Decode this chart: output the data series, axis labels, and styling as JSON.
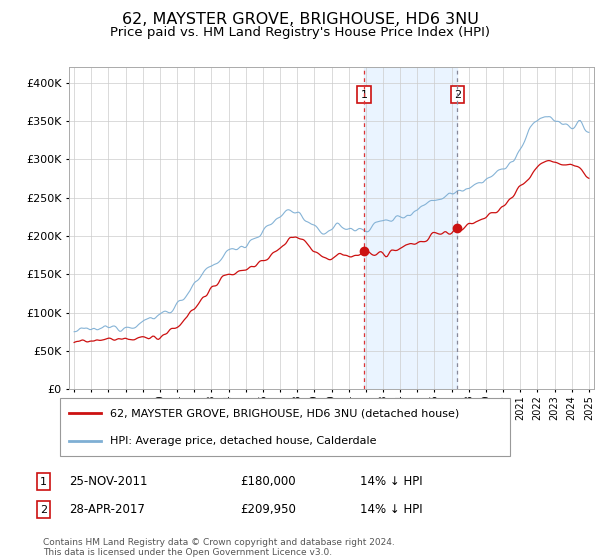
{
  "title": "62, MAYSTER GROVE, BRIGHOUSE, HD6 3NU",
  "subtitle": "Price paid vs. HM Land Registry's House Price Index (HPI)",
  "title_fontsize": 11.5,
  "subtitle_fontsize": 9.5,
  "hpi_color": "#7fafd4",
  "price_color": "#cc1111",
  "marker_color": "#cc1111",
  "grid_color": "#cccccc",
  "background_color": "#ffffff",
  "plot_bg_color": "#ffffff",
  "shading_color": "#ddeeff",
  "vline1_color": "#dd3333",
  "vline2_color": "#888899",
  "ylim": [
    0,
    420000
  ],
  "yticks": [
    0,
    50000,
    100000,
    150000,
    200000,
    250000,
    300000,
    350000,
    400000
  ],
  "year_start": 1995,
  "year_end": 2025,
  "sale1_year": 2011.9,
  "sale1_price": 180000,
  "sale2_year": 2017.33,
  "sale2_price": 209950,
  "legend_entries": [
    "62, MAYSTER GROVE, BRIGHOUSE, HD6 3NU (detached house)",
    "HPI: Average price, detached house, Calderdale"
  ],
  "legend_colors": [
    "#cc1111",
    "#7fafd4"
  ],
  "table_rows": [
    {
      "num": "1",
      "date": "25-NOV-2011",
      "price": "£180,000",
      "note": "14% ↓ HPI"
    },
    {
      "num": "2",
      "date": "28-APR-2017",
      "price": "£209,950",
      "note": "14% ↓ HPI"
    }
  ],
  "footer": "Contains HM Land Registry data © Crown copyright and database right 2024.\nThis data is licensed under the Open Government Licence v3.0."
}
